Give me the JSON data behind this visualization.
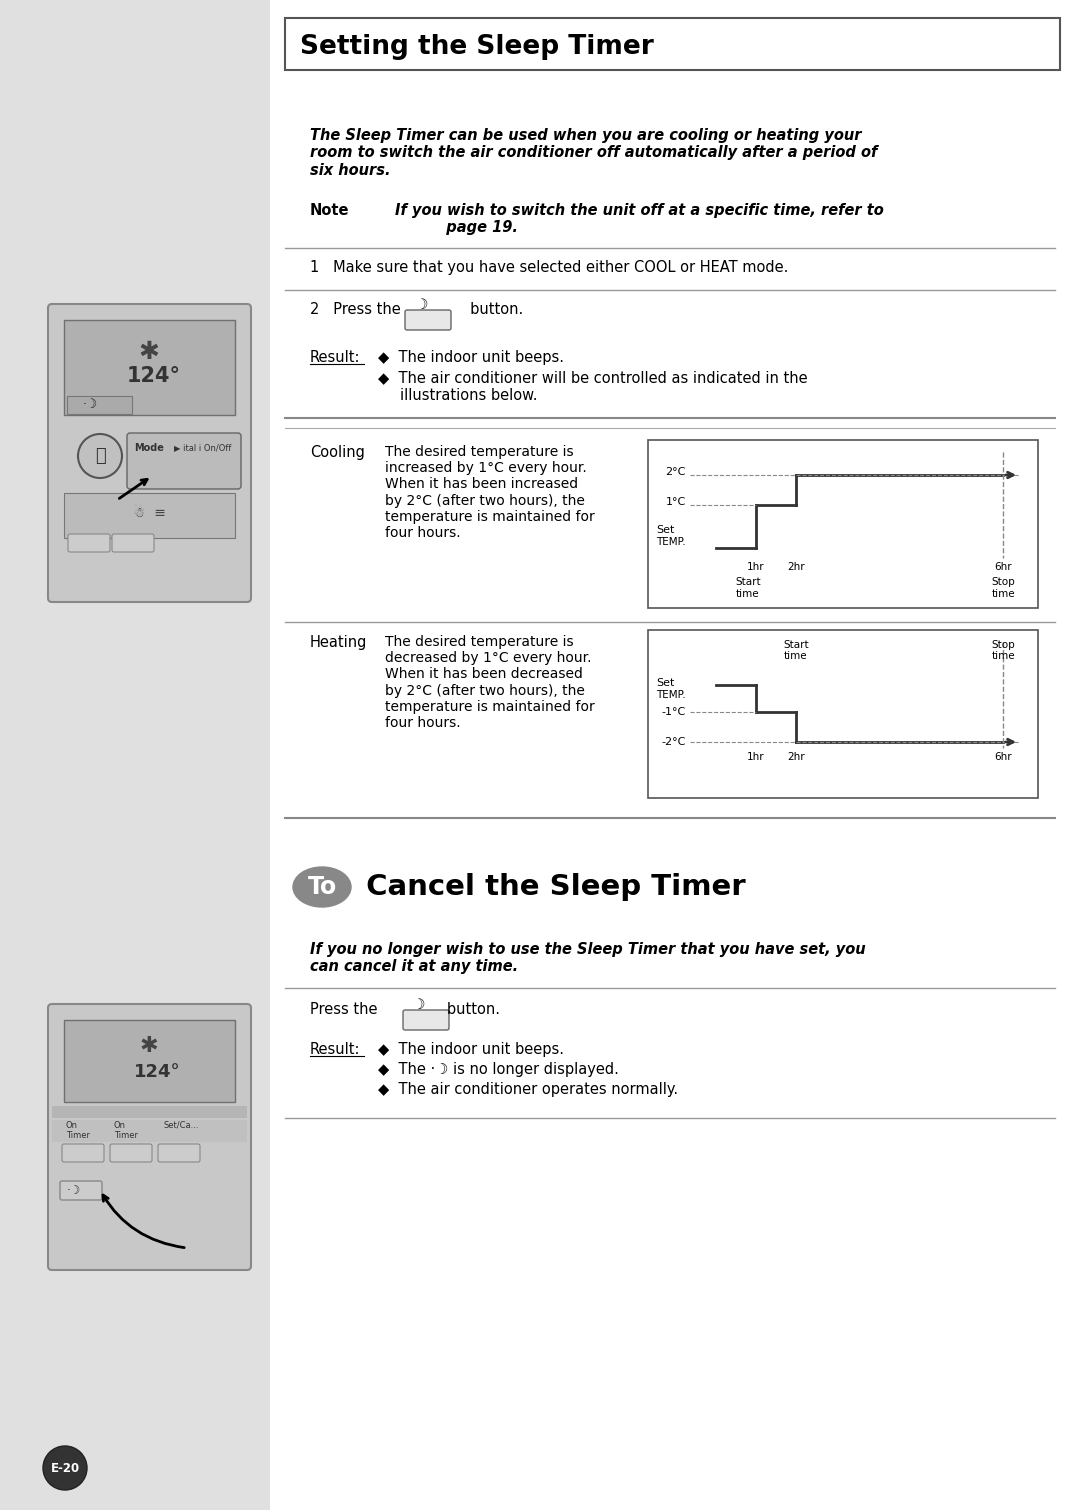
{
  "bg_color": "#e0e0e0",
  "white": "#ffffff",
  "black": "#000000",
  "gray_light": "#d0d0d0",
  "gray_mid": "#b0b0b0",
  "gray_dark": "#808080",
  "title_section1": "Setting the Sleep Timer",
  "intro_text": "The Sleep Timer can be used when you are cooling or heating your\nroom to switch the air conditioner off automatically after a period of\nsix hours.",
  "note_label": "Note",
  "note_text": "If you wish to switch the unit off at a specific time, refer to\n          page 19.",
  "step1": "1   Make sure that you have selected either COOL or HEAT mode.",
  "step2": "2   Press the               button.",
  "result_label": "Result:",
  "result1": "The indoor unit beeps.",
  "result2": "The air conditioner will be controlled as indicated in the\n            illustrations below.",
  "cooling_label": "Cooling",
  "cooling_text": "The desired temperature is\nincreased by 1°C every hour.\nWhen it has been increased\nby 2°C (after two hours), the\ntemperature is maintained for\nfour hours.",
  "heating_label": "Heating",
  "heating_text": "The desired temperature is\ndecreased by 1°C every hour.\nWhen it has been decreased\nby 2°C (after two hours), the\ntemperature is maintained for\nfour hours.",
  "cancel_intro": "If you no longer wish to use the Sleep Timer that you have set, you\ncan cancel it at any time.",
  "cancel_step": "Press the               button.",
  "cancel_result_label": "Result:",
  "cancel_result1": "The indoor unit beeps.",
  "cancel_result2": "The ·☽ is no longer displayed.",
  "cancel_result3": "The air conditioner operates normally.",
  "page_num": "E-20"
}
